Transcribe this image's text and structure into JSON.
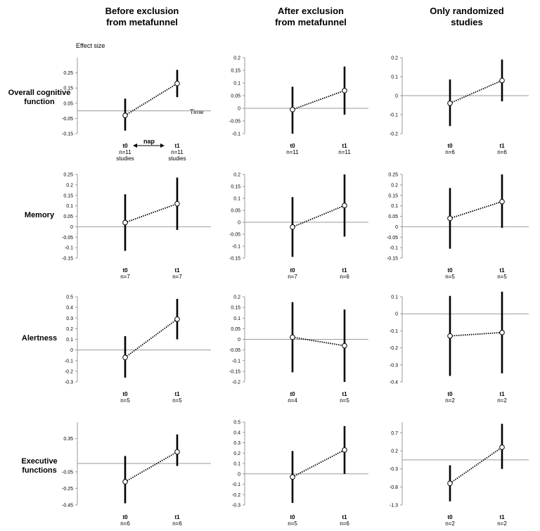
{
  "columns": [
    {
      "line1": "Before exclusion",
      "line2": "from metafunnel"
    },
    {
      "line1": "After exclusion",
      "line2": "from metafunnel"
    },
    {
      "line1": "Only randomized",
      "line2": "studies"
    }
  ],
  "rows": [
    {
      "line1": "Overall cognitive",
      "line2": "function"
    },
    {
      "line1": "Memory",
      "line2": ""
    },
    {
      "line1": "Alertness",
      "line2": ""
    },
    {
      "line1": "Executive",
      "line2": "functions"
    }
  ],
  "annotations": {
    "effect_size": "Effect size",
    "time": "Time",
    "nap": "nap"
  },
  "chart_data": [
    {
      "type": "errorbar-line",
      "row": 0,
      "col": 0,
      "ylim": [
        -0.15,
        0.35
      ],
      "ticks": [
        "0.25",
        "0.15",
        "0.05",
        "-0.05",
        "-0.15"
      ],
      "tick_values": [
        0.25,
        0.15,
        0.05,
        -0.05,
        -0.15
      ],
      "baseline": 0,
      "points": [
        {
          "label": "t0",
          "n_lines": [
            "n=11",
            "studies"
          ],
          "value": -0.03,
          "low": -0.13,
          "high": 0.08
        },
        {
          "label": "t1",
          "n_lines": [
            "n=11",
            "studies"
          ],
          "value": 0.18,
          "low": 0.09,
          "high": 0.27
        }
      ]
    },
    {
      "type": "errorbar-line",
      "row": 0,
      "col": 1,
      "ylim": [
        -0.1,
        0.2
      ],
      "ticks": [
        "0.2",
        "0.15",
        "0.1",
        "0.05",
        "0",
        "-0.05",
        "-0.1"
      ],
      "tick_values": [
        0.2,
        0.15,
        0.1,
        0.05,
        0,
        -0.05,
        -0.1
      ],
      "baseline": 0,
      "points": [
        {
          "label": "t0",
          "n_lines": [
            "n=11"
          ],
          "value": -0.005,
          "low": -0.1,
          "high": 0.085
        },
        {
          "label": "t1",
          "n_lines": [
            "n=11"
          ],
          "value": 0.07,
          "low": -0.025,
          "high": 0.165
        }
      ]
    },
    {
      "type": "errorbar-line",
      "row": 0,
      "col": 2,
      "ylim": [
        -0.2,
        0.2
      ],
      "ticks": [
        "0.2",
        "0.1",
        "0",
        "-0.1",
        "-0.2"
      ],
      "tick_values": [
        0.2,
        0.1,
        0,
        -0.1,
        -0.2
      ],
      "baseline": 0,
      "points": [
        {
          "label": "t0",
          "n_lines": [
            "n=6"
          ],
          "value": -0.04,
          "low": -0.16,
          "high": 0.085
        },
        {
          "label": "t1",
          "n_lines": [
            "n=6"
          ],
          "value": 0.08,
          "low": -0.03,
          "high": 0.19
        }
      ]
    },
    {
      "type": "errorbar-line",
      "row": 1,
      "col": 0,
      "ylim": [
        -0.15,
        0.25
      ],
      "ticks": [
        "0.25",
        "0.2",
        "0.15",
        "0.1",
        "0.05",
        "0",
        "-0.05",
        "-0.1",
        "-0.15"
      ],
      "tick_values": [
        0.25,
        0.2,
        0.15,
        0.1,
        0.05,
        0,
        -0.05,
        -0.1,
        -0.15
      ],
      "baseline": 0,
      "points": [
        {
          "label": "t0",
          "n_lines": [
            "n=7"
          ],
          "value": 0.02,
          "low": -0.115,
          "high": 0.155
        },
        {
          "label": "t1",
          "n_lines": [
            "n=7"
          ],
          "value": 0.11,
          "low": -0.015,
          "high": 0.235
        }
      ]
    },
    {
      "type": "errorbar-line",
      "row": 1,
      "col": 1,
      "ylim": [
        -0.15,
        0.2
      ],
      "ticks": [
        "0.2",
        "0.15",
        "0.1",
        "0.05",
        "0",
        "-0.05",
        "-0.1",
        "-0.15"
      ],
      "tick_values": [
        0.2,
        0.15,
        0.1,
        0.05,
        0,
        -0.05,
        -0.1,
        -0.15
      ],
      "baseline": 0,
      "points": [
        {
          "label": "t0",
          "n_lines": [
            "n=7"
          ],
          "value": -0.02,
          "low": -0.145,
          "high": 0.105
        },
        {
          "label": "t1",
          "n_lines": [
            "n=6"
          ],
          "value": 0.07,
          "low": -0.06,
          "high": 0.2
        }
      ]
    },
    {
      "type": "errorbar-line",
      "row": 1,
      "col": 2,
      "ylim": [
        -0.15,
        0.25
      ],
      "ticks": [
        "0.25",
        "0.2",
        "0.15",
        "0.1",
        "0.05",
        "0",
        "-0.05",
        "-0.1",
        "-0.15"
      ],
      "tick_values": [
        0.25,
        0.2,
        0.15,
        0.1,
        0.05,
        0,
        -0.05,
        -0.1,
        -0.15
      ],
      "baseline": 0,
      "points": [
        {
          "label": "t0",
          "n_lines": [
            "n=5"
          ],
          "value": 0.04,
          "low": -0.105,
          "high": 0.185
        },
        {
          "label": "t1",
          "n_lines": [
            "n=5"
          ],
          "value": 0.12,
          "low": -0.005,
          "high": 0.25
        }
      ]
    },
    {
      "type": "errorbar-line",
      "row": 2,
      "col": 0,
      "ylim": [
        -0.3,
        0.5
      ],
      "ticks": [
        "0.5",
        "0.4",
        "0.3",
        "0.2",
        "0.1",
        "0",
        "-0.1",
        "-0.2",
        "-0.3"
      ],
      "tick_values": [
        0.5,
        0.4,
        0.3,
        0.2,
        0.1,
        0,
        -0.1,
        -0.2,
        -0.3
      ],
      "baseline": 0,
      "points": [
        {
          "label": "t0",
          "n_lines": [
            "n=5"
          ],
          "value": -0.07,
          "low": -0.26,
          "high": 0.13
        },
        {
          "label": "t1",
          "n_lines": [
            "n=5"
          ],
          "value": 0.29,
          "low": 0.1,
          "high": 0.48
        }
      ]
    },
    {
      "type": "errorbar-line",
      "row": 2,
      "col": 1,
      "ylim": [
        -0.2,
        0.2
      ],
      "ticks": [
        "0.2",
        "0.15",
        "0.1",
        "0.05",
        "0",
        "-0.05",
        "-0.1",
        "-0.15",
        "-0.2"
      ],
      "tick_values": [
        0.2,
        0.15,
        0.1,
        0.05,
        0,
        -0.05,
        -0.1,
        -0.15,
        -0.2
      ],
      "baseline": 0,
      "points": [
        {
          "label": "t0",
          "n_lines": [
            "n=4"
          ],
          "value": 0.01,
          "low": -0.155,
          "high": 0.175
        },
        {
          "label": "t1",
          "n_lines": [
            "n=5"
          ],
          "value": -0.03,
          "low": -0.2,
          "high": 0.14
        }
      ]
    },
    {
      "type": "errorbar-line",
      "row": 2,
      "col": 2,
      "ylim": [
        -0.4,
        0.1
      ],
      "ticks": [
        "0.1",
        "0",
        "-0.1",
        "-0.2",
        "-0.3",
        "-0.4"
      ],
      "tick_values": [
        0.1,
        0,
        -0.1,
        -0.2,
        -0.3,
        -0.4
      ],
      "baseline": 0,
      "points": [
        {
          "label": "t0",
          "n_lines": [
            "n=2"
          ],
          "value": -0.13,
          "low": -0.365,
          "high": 0.105
        },
        {
          "label": "t1",
          "n_lines": [
            "n=2"
          ],
          "value": -0.11,
          "low": -0.35,
          "high": 0.13
        }
      ]
    },
    {
      "type": "errorbar-line",
      "row": 3,
      "col": 0,
      "ylim": [
        -0.45,
        0.55
      ],
      "ticks": [
        "0.35",
        "-0.05",
        "-0.25",
        "-0.45"
      ],
      "tick_values": [
        0.35,
        -0.05,
        -0.25,
        -0.45
      ],
      "baseline": 0.05,
      "points": [
        {
          "label": "t0",
          "n_lines": [
            "n=6"
          ],
          "value": -0.17,
          "low": -0.43,
          "high": 0.14
        },
        {
          "label": "t1",
          "n_lines": [
            "n=6"
          ],
          "value": 0.19,
          "low": 0.02,
          "high": 0.4
        }
      ]
    },
    {
      "type": "errorbar-line",
      "row": 3,
      "col": 1,
      "ylim": [
        -0.3,
        0.5
      ],
      "ticks": [
        "0.5",
        "0.4",
        "0.3",
        "0.2",
        "0.1",
        "0",
        "-0.1",
        "-0.2",
        "-0.3"
      ],
      "tick_values": [
        0.5,
        0.4,
        0.3,
        0.2,
        0.1,
        0,
        -0.1,
        -0.2,
        -0.3
      ],
      "baseline": 0,
      "points": [
        {
          "label": "t0",
          "n_lines": [
            "n=5"
          ],
          "value": -0.03,
          "low": -0.28,
          "high": 0.22
        },
        {
          "label": "t1",
          "n_lines": [
            "n=6"
          ],
          "value": 0.23,
          "low": 0,
          "high": 0.46
        }
      ]
    },
    {
      "type": "errorbar-line",
      "row": 3,
      "col": 2,
      "ylim": [
        -1.3,
        1.0
      ],
      "ticks": [
        "0.7",
        "0.2",
        "-0.3",
        "-0.8",
        "-1.3"
      ],
      "tick_values": [
        0.7,
        0.2,
        -0.3,
        -0.8,
        -1.3
      ],
      "baseline": -0.05,
      "points": [
        {
          "label": "t0",
          "n_lines": [
            "n=2"
          ],
          "value": -0.7,
          "low": -1.2,
          "high": -0.2
        },
        {
          "label": "t1",
          "n_lines": [
            "n=2"
          ],
          "value": 0.3,
          "low": -0.3,
          "high": 0.95
        }
      ]
    }
  ]
}
